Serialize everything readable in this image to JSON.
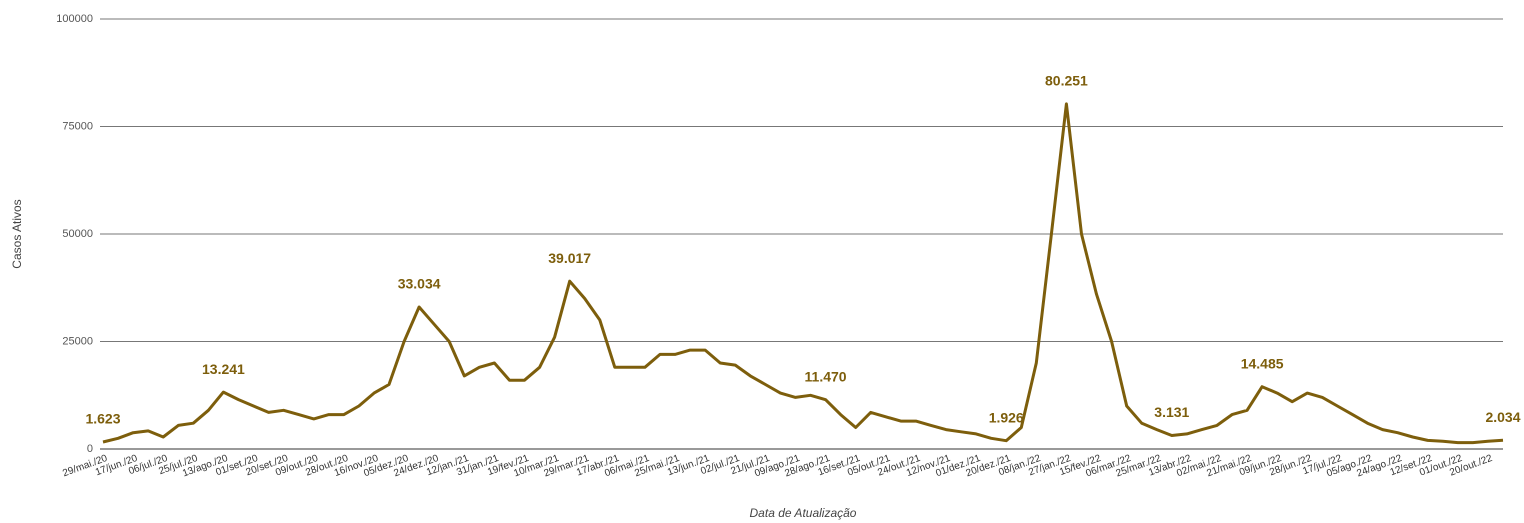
{
  "chart_data": {
    "type": "line",
    "y_label": "Casos Ativos",
    "x_label": "Data de Atualização",
    "categories": [
      "29/mai./20",
      null,
      "17/jun./20",
      null,
      "06/jul./20",
      null,
      "25/jul./20",
      null,
      "13/ago./20",
      null,
      "01/set./20",
      null,
      "20/set./20",
      null,
      "09/out./20",
      null,
      "28/out./20",
      null,
      "16/nov./20",
      null,
      "05/dez./20",
      null,
      "24/dez./20",
      null,
      "12/jan./21",
      null,
      "31/jan./21",
      null,
      "19/fev./21",
      null,
      "10/mar./21",
      null,
      "29/mar./21",
      null,
      "17/abr./21",
      null,
      "06/mai./21",
      null,
      "25/mai./21",
      null,
      "13/jun./21",
      null,
      "02/jul./21",
      null,
      "21/jul./21",
      null,
      "09/ago./21",
      null,
      "28/ago./21",
      null,
      "16/set./21",
      null,
      "05/out./21",
      null,
      "24/out./21",
      null,
      "12/nov./21",
      null,
      "01/dez./21",
      null,
      "20/dez./21",
      null,
      "08/jan./22",
      null,
      "27/jan./22",
      null,
      "15/fev./22",
      null,
      "06/mar./22",
      null,
      "25/mar./22",
      null,
      "13/abr./22",
      null,
      "02/mai./22",
      null,
      "21/mai./22",
      null,
      "09/jun./22",
      null,
      "28/jun./22",
      null,
      "17/jul./22",
      null,
      "05/ago./22",
      null,
      "24/ago./22",
      null,
      "12/set./22",
      null,
      "01/out./22",
      null,
      "20/out./22",
      null
    ],
    "series": [
      {
        "name": "Casos Ativos",
        "color": "#7d5e0c",
        "values": [
          1623,
          2500,
          3800,
          4200,
          2800,
          5500,
          6000,
          9000,
          13241,
          11500,
          10000,
          8500,
          9000,
          8000,
          7000,
          8000,
          8000,
          10000,
          13000,
          15000,
          25000,
          33034,
          29000,
          25000,
          17000,
          19000,
          20000,
          16000,
          16000,
          19000,
          26000,
          39017,
          35000,
          30000,
          19000,
          19000,
          19000,
          22000,
          22000,
          23000,
          23000,
          20000,
          19500,
          17000,
          15000,
          13000,
          12000,
          12500,
          11470,
          8000,
          5000,
          8500,
          7500,
          6500,
          6500,
          5500,
          4500,
          4000,
          3500,
          2500,
          1926,
          5000,
          20000,
          50000,
          80251,
          50000,
          36000,
          25000,
          10000,
          6000,
          4500,
          3131,
          3500,
          4500,
          5500,
          8000,
          9000,
          14485,
          13000,
          11000,
          13000,
          12000,
          10000,
          8000,
          6000,
          4500,
          3800,
          2800,
          2000,
          1800,
          1500,
          1500,
          1800,
          2034
        ],
        "value_labels": [
          "1.623",
          null,
          null,
          null,
          null,
          null,
          null,
          null,
          "13.241",
          null,
          null,
          null,
          null,
          null,
          null,
          null,
          null,
          null,
          null,
          null,
          null,
          "33.034",
          null,
          null,
          null,
          null,
          null,
          null,
          null,
          null,
          null,
          "39.017",
          null,
          null,
          null,
          null,
          null,
          null,
          null,
          null,
          null,
          null,
          null,
          null,
          null,
          null,
          null,
          null,
          "11.470",
          null,
          null,
          null,
          null,
          null,
          null,
          null,
          null,
          null,
          null,
          null,
          "1.926",
          null,
          null,
          null,
          "80.251",
          null,
          null,
          null,
          null,
          null,
          null,
          "3.131",
          null,
          null,
          null,
          null,
          null,
          "14.485",
          null,
          null,
          null,
          null,
          null,
          null,
          null,
          null,
          null,
          null,
          null,
          null,
          null,
          null,
          null,
          "2.034"
        ]
      }
    ],
    "ylim": [
      0,
      100000
    ],
    "yticks": [
      0,
      25000,
      50000,
      75000,
      100000
    ],
    "grid": true
  }
}
